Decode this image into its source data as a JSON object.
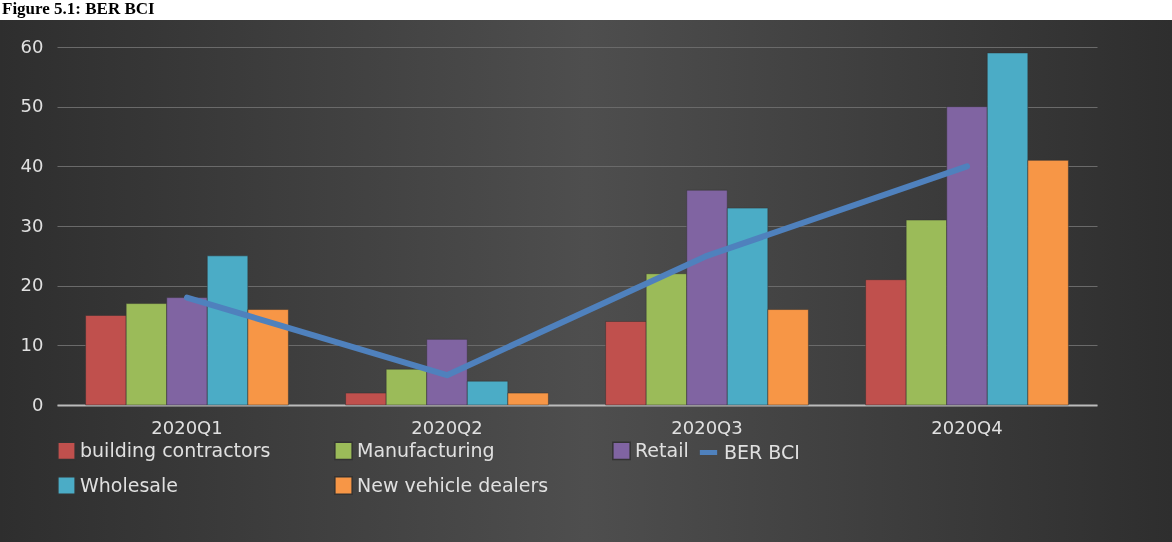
{
  "chart_data": {
    "type": "bar",
    "title": "Figure 5.1: BER BCI",
    "categories": [
      "2020Q1",
      "2020Q2",
      "2020Q3",
      "2020Q4"
    ],
    "series": [
      {
        "name": "building contractors",
        "color": "#c0504d",
        "values": [
          15,
          2,
          14,
          21
        ]
      },
      {
        "name": "Manufacturing",
        "color": "#9bbb59",
        "values": [
          17,
          6,
          22,
          31
        ]
      },
      {
        "name": "Retail",
        "color": "#8064a2",
        "values": [
          18,
          11,
          36,
          50
        ]
      },
      {
        "name": "Wholesale",
        "color": "#4bacc6",
        "values": [
          25,
          4,
          33,
          59
        ]
      },
      {
        "name": "New vehicle dealers",
        "color": "#f79646",
        "values": [
          16,
          2,
          16,
          41
        ]
      },
      {
        "name": "BER BCI",
        "color": "#4f81bd",
        "type": "line",
        "values": [
          18,
          5,
          25,
          40
        ]
      }
    ],
    "ylim": [
      0,
      60
    ],
    "yticks": [
      0,
      10,
      20,
      30,
      40,
      50,
      60
    ],
    "grid": "y",
    "legend": "bottom"
  }
}
